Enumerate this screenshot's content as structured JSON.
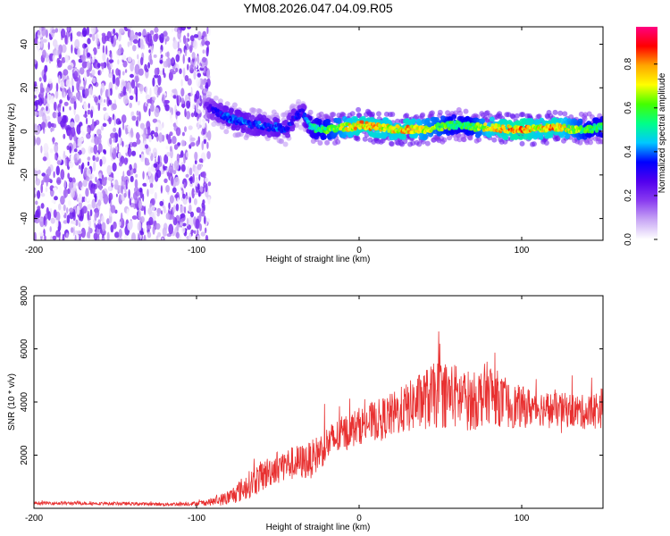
{
  "figure_title": "YM08.2026.047.04.09.R05",
  "chart_data": [
    {
      "type": "heatmap",
      "title": "YM08.2026.047.04.09.R05",
      "xlabel": "Height of straight line (km)",
      "ylabel": "Frequency (Hz)",
      "xlim": [
        -200,
        150
      ],
      "ylim": [
        -50,
        48
      ],
      "xticks": [
        -200,
        -100,
        0,
        100
      ],
      "yticks": [
        -40,
        -20,
        0,
        20,
        40
      ],
      "colorbar": {
        "label": "Normalized spectral amplitude",
        "range": [
          0.0,
          0.97
        ],
        "ticks": [
          0.0,
          0.2,
          0.4,
          0.6,
          0.8
        ],
        "colors": [
          "#ffffff",
          "#c9a8f5",
          "#8a3cf0",
          "#5200ee",
          "#0000ff",
          "#00c8ff",
          "#00ff88",
          "#44ff00",
          "#ffff00",
          "#ffa500",
          "#ff0000",
          "#ff0080"
        ]
      },
      "noise_region": {
        "x_range": [
          -200,
          -92
        ],
        "amplitude": 0.15
      },
      "ridge": {
        "x": [
          -95,
          -90,
          -85,
          -80,
          -75,
          -70,
          -65,
          -60,
          -55,
          -50,
          -45,
          -40,
          -35,
          -30,
          -25,
          -20,
          -15,
          -10,
          -5,
          0,
          10,
          20,
          30,
          40,
          50,
          60,
          70,
          80,
          90,
          100,
          110,
          120,
          130,
          140,
          150
        ],
        "freq": [
          12,
          10,
          8,
          6,
          5,
          4,
          3,
          3,
          2,
          2,
          1,
          6,
          9,
          2,
          1,
          1,
          1,
          2,
          2,
          3,
          2,
          1,
          1,
          1,
          2,
          3,
          2,
          2,
          1,
          1,
          1,
          2,
          1,
          1,
          2
        ],
        "amplitude": [
          0.2,
          0.3,
          0.35,
          0.4,
          0.4,
          0.4,
          0.35,
          0.4,
          0.35,
          0.4,
          0.35,
          0.35,
          0.3,
          0.5,
          0.55,
          0.6,
          0.65,
          0.7,
          0.75,
          0.8,
          0.78,
          0.75,
          0.8,
          0.7,
          0.65,
          0.55,
          0.6,
          0.75,
          0.8,
          0.85,
          0.75,
          0.8,
          0.7,
          0.6,
          0.55
        ]
      }
    },
    {
      "type": "line",
      "xlabel": "Height of straight line (km)",
      "ylabel": "SNR (10 * v/v)",
      "xlim": [
        -200,
        150
      ],
      "ylim": [
        0,
        8000
      ],
      "xticks": [
        -200,
        -100,
        0,
        100
      ],
      "yticks": [
        2000,
        4000,
        6000,
        8000
      ],
      "series": [
        {
          "name": "SNR",
          "color": "#e83030",
          "x": [
            -200,
            -150,
            -120,
            -100,
            -90,
            -80,
            -70,
            -60,
            -50,
            -40,
            -30,
            -20,
            -10,
            0,
            10,
            20,
            30,
            40,
            50,
            60,
            70,
            80,
            90,
            100,
            110,
            120,
            130,
            140,
            150
          ],
          "y": [
            200,
            180,
            150,
            180,
            250,
            400,
            800,
            1200,
            1600,
            1700,
            1800,
            2400,
            2800,
            3100,
            3300,
            3500,
            3800,
            4100,
            4300,
            4200,
            4000,
            4400,
            3900,
            3800,
            3800,
            3700,
            3700,
            3600,
            3800
          ],
          "noise": [
            60,
            60,
            60,
            80,
            150,
            300,
            500,
            600,
            600,
            650,
            700,
            700,
            700,
            700,
            750,
            850,
            950,
            1150,
            1300,
            1250,
            1100,
            1200,
            900,
            800,
            700,
            650,
            650,
            650,
            800
          ]
        }
      ]
    }
  ]
}
